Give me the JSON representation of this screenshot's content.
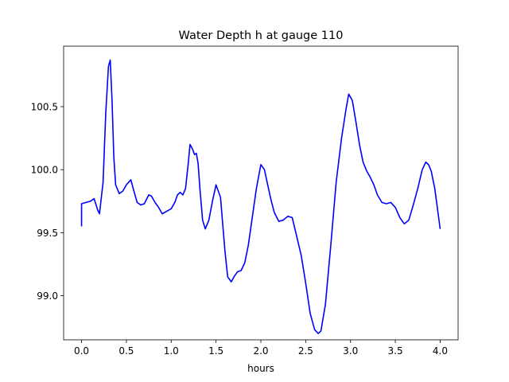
{
  "chart_data": {
    "type": "line",
    "title": "Water Depth h at gauge 110",
    "xlabel": "hours",
    "ylabel": "",
    "xlim": [
      -0.2,
      4.2
    ],
    "ylim": [
      98.65,
      100.98
    ],
    "xticks": [
      0.0,
      0.5,
      1.0,
      1.5,
      2.0,
      2.5,
      3.0,
      3.5,
      4.0
    ],
    "xtick_labels": [
      "0.0",
      "0.5",
      "1.0",
      "1.5",
      "2.0",
      "2.5",
      "3.0",
      "3.5",
      "4.0"
    ],
    "yticks": [
      99.0,
      99.5,
      100.0,
      100.5
    ],
    "ytick_labels": [
      "99.0",
      "99.5",
      "100.0",
      "100.5"
    ],
    "grid": false,
    "legend": "none",
    "series": [
      {
        "color": "#0000ff",
        "x": [
          0.0,
          0.0,
          0.05,
          0.1,
          0.14,
          0.18,
          0.2,
          0.24,
          0.27,
          0.3,
          0.32,
          0.34,
          0.36,
          0.38,
          0.42,
          0.46,
          0.5,
          0.55,
          0.58,
          0.62,
          0.66,
          0.7,
          0.75,
          0.78,
          0.82,
          0.86,
          0.9,
          0.95,
          1.0,
          1.04,
          1.07,
          1.1,
          1.13,
          1.16,
          1.19,
          1.21,
          1.24,
          1.26,
          1.28,
          1.3,
          1.32,
          1.35,
          1.38,
          1.42,
          1.46,
          1.5,
          1.55,
          1.6,
          1.63,
          1.67,
          1.7,
          1.74,
          1.78,
          1.82,
          1.86,
          1.9,
          1.95,
          2.0,
          2.04,
          2.07,
          2.11,
          2.15,
          2.2,
          2.25,
          2.3,
          2.35,
          2.4,
          2.45,
          2.5,
          2.55,
          2.6,
          2.64,
          2.67,
          2.72,
          2.78,
          2.84,
          2.9,
          2.95,
          2.98,
          3.02,
          3.06,
          3.1,
          3.14,
          3.18,
          3.22,
          3.26,
          3.3,
          3.35,
          3.4,
          3.45,
          3.5,
          3.55,
          3.6,
          3.65,
          3.7,
          3.75,
          3.8,
          3.84,
          3.87,
          3.9,
          3.94,
          3.97,
          4.0
        ],
        "y": [
          99.55,
          99.73,
          99.74,
          99.75,
          99.77,
          99.68,
          99.65,
          99.9,
          100.45,
          100.82,
          100.87,
          100.55,
          100.1,
          99.88,
          99.81,
          99.83,
          99.88,
          99.92,
          99.84,
          99.74,
          99.72,
          99.73,
          99.8,
          99.79,
          99.74,
          99.7,
          99.65,
          99.67,
          99.69,
          99.74,
          99.8,
          99.82,
          99.8,
          99.85,
          100.05,
          100.2,
          100.16,
          100.12,
          100.13,
          100.05,
          99.85,
          99.6,
          99.53,
          99.6,
          99.75,
          99.88,
          99.78,
          99.35,
          99.15,
          99.11,
          99.15,
          99.19,
          99.2,
          99.26,
          99.4,
          99.6,
          99.85,
          100.04,
          100.0,
          99.9,
          99.77,
          99.66,
          99.59,
          99.6,
          99.63,
          99.62,
          99.47,
          99.32,
          99.1,
          98.86,
          98.73,
          98.7,
          98.72,
          98.93,
          99.4,
          99.9,
          100.25,
          100.48,
          100.6,
          100.55,
          100.38,
          100.2,
          100.06,
          99.99,
          99.94,
          99.88,
          99.8,
          99.74,
          99.73,
          99.74,
          99.7,
          99.62,
          99.57,
          99.6,
          99.72,
          99.85,
          100.0,
          100.06,
          100.04,
          99.99,
          99.85,
          99.69,
          99.53
        ]
      }
    ]
  }
}
